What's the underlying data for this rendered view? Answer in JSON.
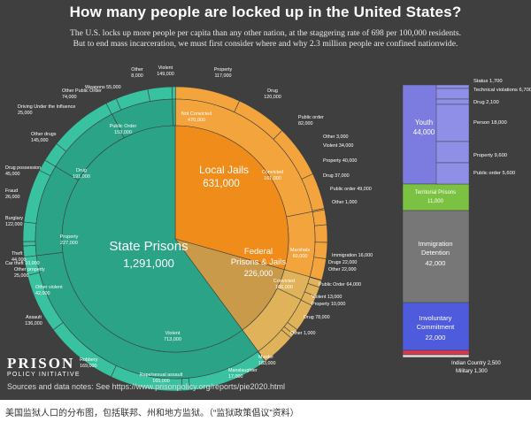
{
  "page": {
    "title": "How many people are locked up in the United States?",
    "subtitle_line1": "The U.S. locks up more people per capita than any other nation, at the staggering rate of 698 per 100,000 residents.",
    "subtitle_line2": "But to end mass incarceration, we must first consider where and why 2.3 million people are confined nationwide.",
    "logo_main": "PRISON",
    "logo_sub": "POLICY INITIATIVE",
    "sources": "Sources and data notes: See https://www.prisonpolicy.org/reports/pie2020.html",
    "caption": "美国监狱人口的分布图，包括联邦、州和地方监狱。（“监狱政策倡议”资料）"
  },
  "colors": {
    "background": "#3f3f3f",
    "state": "#2aa387",
    "state_light": "#38c2a0",
    "local": "#f08c1a",
    "local_light": "#f4a43d",
    "federal": "#c99a4a",
    "federal_light": "#e0b25a",
    "youth": "#7b7be0",
    "territorial": "#7cc242",
    "immigration": "#777777",
    "commitment": "#4d5bdc",
    "indian": "#d9394f",
    "military": "#dddddd"
  },
  "chart_data": {
    "type": "pie",
    "title": "How many people are locked up in the United States?",
    "systems": [
      {
        "name": "State Prisons",
        "value": 1291000,
        "label": "1,291,000"
      },
      {
        "name": "Local Jails",
        "value": 631000,
        "label": "631,000"
      },
      {
        "name": "Federal Prisons & Jails",
        "value": 226000,
        "label": "226,000"
      },
      {
        "name": "Youth",
        "value": 44000,
        "label": "44,000"
      },
      {
        "name": "Territorial Prisons",
        "value": 11000,
        "label": "11,000"
      },
      {
        "name": "Immigration Detention",
        "value": 42000,
        "label": "42,000"
      },
      {
        "name": "Involuntary Commitment",
        "value": 22000,
        "label": "22,000"
      },
      {
        "name": "Indian Country",
        "value": 2500,
        "label": "2,500"
      },
      {
        "name": "Military",
        "value": 1300,
        "label": "1,300"
      }
    ],
    "state_breakdown": [
      {
        "name": "Violent",
        "value": 713000,
        "label": "713,000"
      },
      {
        "name": "Property",
        "value": 227000,
        "label": "227,000"
      },
      {
        "name": "Drug",
        "value": 191000,
        "label": "191,000"
      },
      {
        "name": "Public Order",
        "value": 153000,
        "label": "153,000"
      },
      {
        "name": "Other",
        "value": 8000,
        "label": "8,000"
      }
    ],
    "state_detail": [
      {
        "name": "Murder",
        "value": 183000,
        "label": "183,000"
      },
      {
        "name": "Manslaughter",
        "value": 17000,
        "label": "17,000"
      },
      {
        "name": "Rape/sexual assault",
        "value": 165000,
        "label": "165,000"
      },
      {
        "name": "Robbery",
        "value": 169000,
        "label": "169,000"
      },
      {
        "name": "Assault",
        "value": 136000,
        "label": "136,000"
      },
      {
        "name": "Other violent",
        "value": 42000,
        "label": "42,000"
      },
      {
        "name": "Other property",
        "value": 25000,
        "label": "25,000"
      },
      {
        "name": "Car theft",
        "value": 10000,
        "label": "10,000"
      },
      {
        "name": "Theft",
        "value": 44000,
        "label": "44,000"
      },
      {
        "name": "Burglary",
        "value": 122000,
        "label": "122,000"
      },
      {
        "name": "Fraud",
        "value": 26000,
        "label": "26,000"
      },
      {
        "name": "Drug possession",
        "value": 45000,
        "label": "45,000"
      },
      {
        "name": "Other drugs",
        "value": 145000,
        "label": "145,000"
      },
      {
        "name": "Driving Under the Influence",
        "value": 25000,
        "label": "25,000"
      },
      {
        "name": "Other Public Order",
        "value": 74000,
        "label": "74,000"
      },
      {
        "name": "Weapons",
        "value": 55000,
        "label": "55,000"
      }
    ],
    "local_breakdown": [
      {
        "name": "Not Convicted",
        "value": 470000,
        "label": "470,000"
      },
      {
        "name": "Convicted",
        "value": 161000,
        "label": "161,000"
      }
    ],
    "local_detail": [
      {
        "name": "Violent",
        "value": 149000,
        "label": "149,000"
      },
      {
        "name": "Property",
        "value": 117000,
        "label": "117,000"
      },
      {
        "name": "Drug",
        "value": 120000,
        "label": "120,000"
      },
      {
        "name": "Public order",
        "value": 82000,
        "label": "82,000"
      },
      {
        "name": "Other",
        "value": 3000,
        "label": "3,000"
      },
      {
        "name": "Violent",
        "value": 34000,
        "label": "34,000"
      },
      {
        "name": "Property",
        "value": 40000,
        "label": "40,000"
      },
      {
        "name": "Drug",
        "value": 37000,
        "label": "37,000"
      },
      {
        "name": "Public order",
        "value": 49000,
        "label": "49,000"
      },
      {
        "name": "Other",
        "value": 1000,
        "label": "1,000"
      }
    ],
    "federal_breakdown": [
      {
        "name": "Marshals",
        "value": 60000,
        "label": "60,000"
      },
      {
        "name": "Convicted",
        "value": 166000,
        "label": "166,000"
      }
    ],
    "federal_detail": [
      {
        "name": "Immigration",
        "value": 16000,
        "label": "16,000"
      },
      {
        "name": "Drugs",
        "value": 22000,
        "label": "22,000"
      },
      {
        "name": "Other",
        "value": 22000,
        "label": "22,000"
      },
      {
        "name": "Public Order",
        "value": 64000,
        "label": "64,000"
      },
      {
        "name": "Violent",
        "value": 13000,
        "label": "13,000"
      },
      {
        "name": "Property",
        "value": 10000,
        "label": "10,000"
      },
      {
        "name": "Drug",
        "value": 78000,
        "label": "78,000"
      },
      {
        "name": "Other",
        "value": 1000,
        "label": "1,000"
      }
    ],
    "youth_detail": [
      {
        "name": "Status",
        "value": 1700,
        "label": "1,700"
      },
      {
        "name": "Technical violations",
        "value": 6700,
        "label": "6,700"
      },
      {
        "name": "Drug",
        "value": 2100,
        "label": "2,100"
      },
      {
        "name": "Person",
        "value": 18000,
        "label": "18,000"
      },
      {
        "name": "Property",
        "value": 9600,
        "label": "9,600"
      },
      {
        "name": "Public order",
        "value": 5600,
        "label": "5,600"
      }
    ]
  }
}
